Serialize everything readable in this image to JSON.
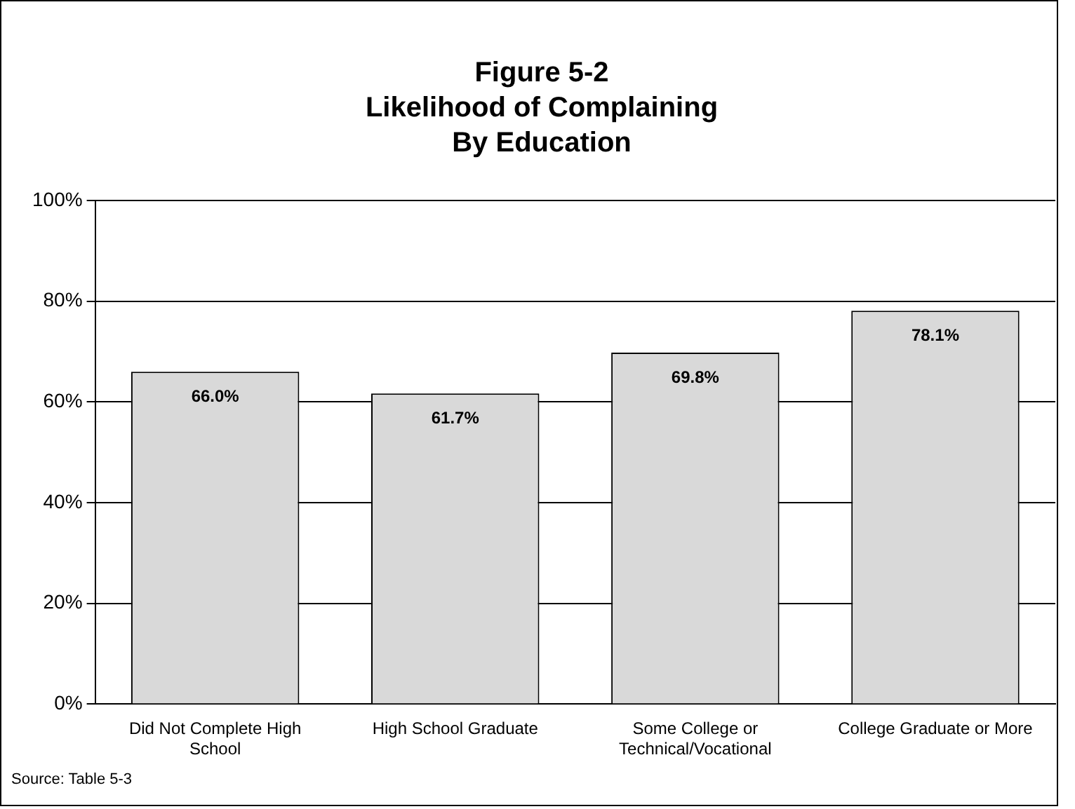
{
  "chart_data": {
    "type": "bar",
    "title": "Figure 5-2\nLikelihood of Complaining\nBy Education",
    "categories": [
      "Did Not Complete High School",
      "High School Graduate",
      "Some College or Technical/Vocational",
      "College Graduate or More"
    ],
    "values": [
      66.0,
      61.7,
      69.8,
      78.1
    ],
    "value_labels": [
      "66.0%",
      "61.7%",
      "69.8%",
      "78.1%"
    ],
    "color": "#d9d9d9",
    "ylim": [
      0,
      100
    ],
    "yticks": [
      {
        "value": 0,
        "label": "0%"
      },
      {
        "value": 20,
        "label": "20%"
      },
      {
        "value": 40,
        "label": "40%"
      },
      {
        "value": 60,
        "label": "60%"
      },
      {
        "value": 80,
        "label": "80%"
      },
      {
        "value": 100,
        "label": "100%"
      }
    ],
    "grid": "y",
    "legend": false,
    "annotations": [
      "Source: Table 5-3"
    ]
  }
}
